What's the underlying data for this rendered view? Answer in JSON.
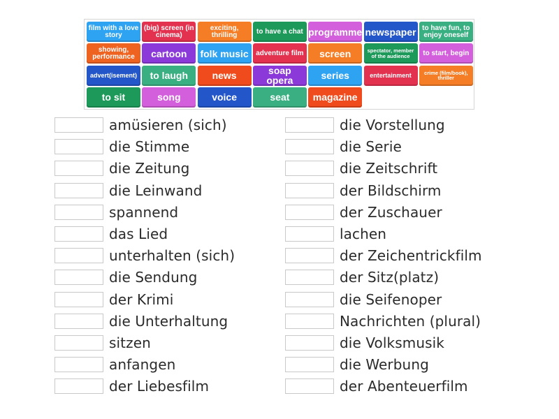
{
  "tiles": [
    {
      "label": "film with a love story",
      "color": "#2ea3f2",
      "size": "m"
    },
    {
      "label": "(big) screen (in cinema)",
      "color": "#e3324f",
      "size": "m"
    },
    {
      "label": "exciting, thrilling",
      "color": "#f57d26",
      "size": "m"
    },
    {
      "label": "to have a chat",
      "color": "#1d9a5a",
      "size": "m"
    },
    {
      "label": "programme",
      "color": "#d35fdc",
      "size": "l"
    },
    {
      "label": "newspaper",
      "color": "#2356c9",
      "size": "l"
    },
    {
      "label": "to have fun, to enjoy oneself",
      "color": "#3ab082",
      "size": "m"
    },
    {
      "label": "showing, performance",
      "color": "#ef6321",
      "size": "m"
    },
    {
      "label": "cartoon",
      "color": "#8b3ad9",
      "size": "l"
    },
    {
      "label": "folk music",
      "color": "#2ea3f2",
      "size": "l"
    },
    {
      "label": "adventure film",
      "color": "#e3324f",
      "size": "m"
    },
    {
      "label": "screen",
      "color": "#f57d26",
      "size": "l"
    },
    {
      "label": "spectator, member of the audience",
      "color": "#1d9a5a",
      "size": "s"
    },
    {
      "label": "to start, begin",
      "color": "#d35fdc",
      "size": "m"
    },
    {
      "label": "advert(isement)",
      "color": "#2356c9",
      "size": "xs"
    },
    {
      "label": "to laugh",
      "color": "#3ab082",
      "size": "l"
    },
    {
      "label": "news",
      "color": "#ef4b1d",
      "size": "l"
    },
    {
      "label": "soap opera",
      "color": "#8b3ad9",
      "size": "l"
    },
    {
      "label": "series",
      "color": "#2ea3f2",
      "size": "l"
    },
    {
      "label": "entertainment",
      "color": "#e3324f",
      "size": "xs"
    },
    {
      "label": "crime (film/book), thriller",
      "color": "#f57d26",
      "size": "s"
    },
    {
      "label": "to sit",
      "color": "#1d9a5a",
      "size": "l"
    },
    {
      "label": "song",
      "color": "#d35fdc",
      "size": "l"
    },
    {
      "label": "voice",
      "color": "#2356c9",
      "size": "l"
    },
    {
      "label": "seat",
      "color": "#3ab082",
      "size": "l"
    },
    {
      "label": "magazine",
      "color": "#ef4b1d",
      "size": "l"
    }
  ],
  "left_column": [
    "amüsieren (sich)",
    "die Stimme",
    "die Zeitung",
    "die Leinwand",
    "spannend",
    "das Lied",
    "unterhalten (sich)",
    "die Sendung",
    "der Krimi",
    "die Unterhaltung",
    "sitzen",
    "anfangen",
    "der Liebesfilm"
  ],
  "right_column": [
    "die Vorstellung",
    "die Serie",
    "die Zeitschrift",
    "der Bildschirm",
    "der Zuschauer",
    "lachen",
    "der Zeichentrickfilm",
    "der Sitz(platz)",
    "die Seifenoper",
    "Nachrichten (plural)",
    "die Volksmusik",
    "die Werbung",
    "der Abenteuerfilm"
  ]
}
